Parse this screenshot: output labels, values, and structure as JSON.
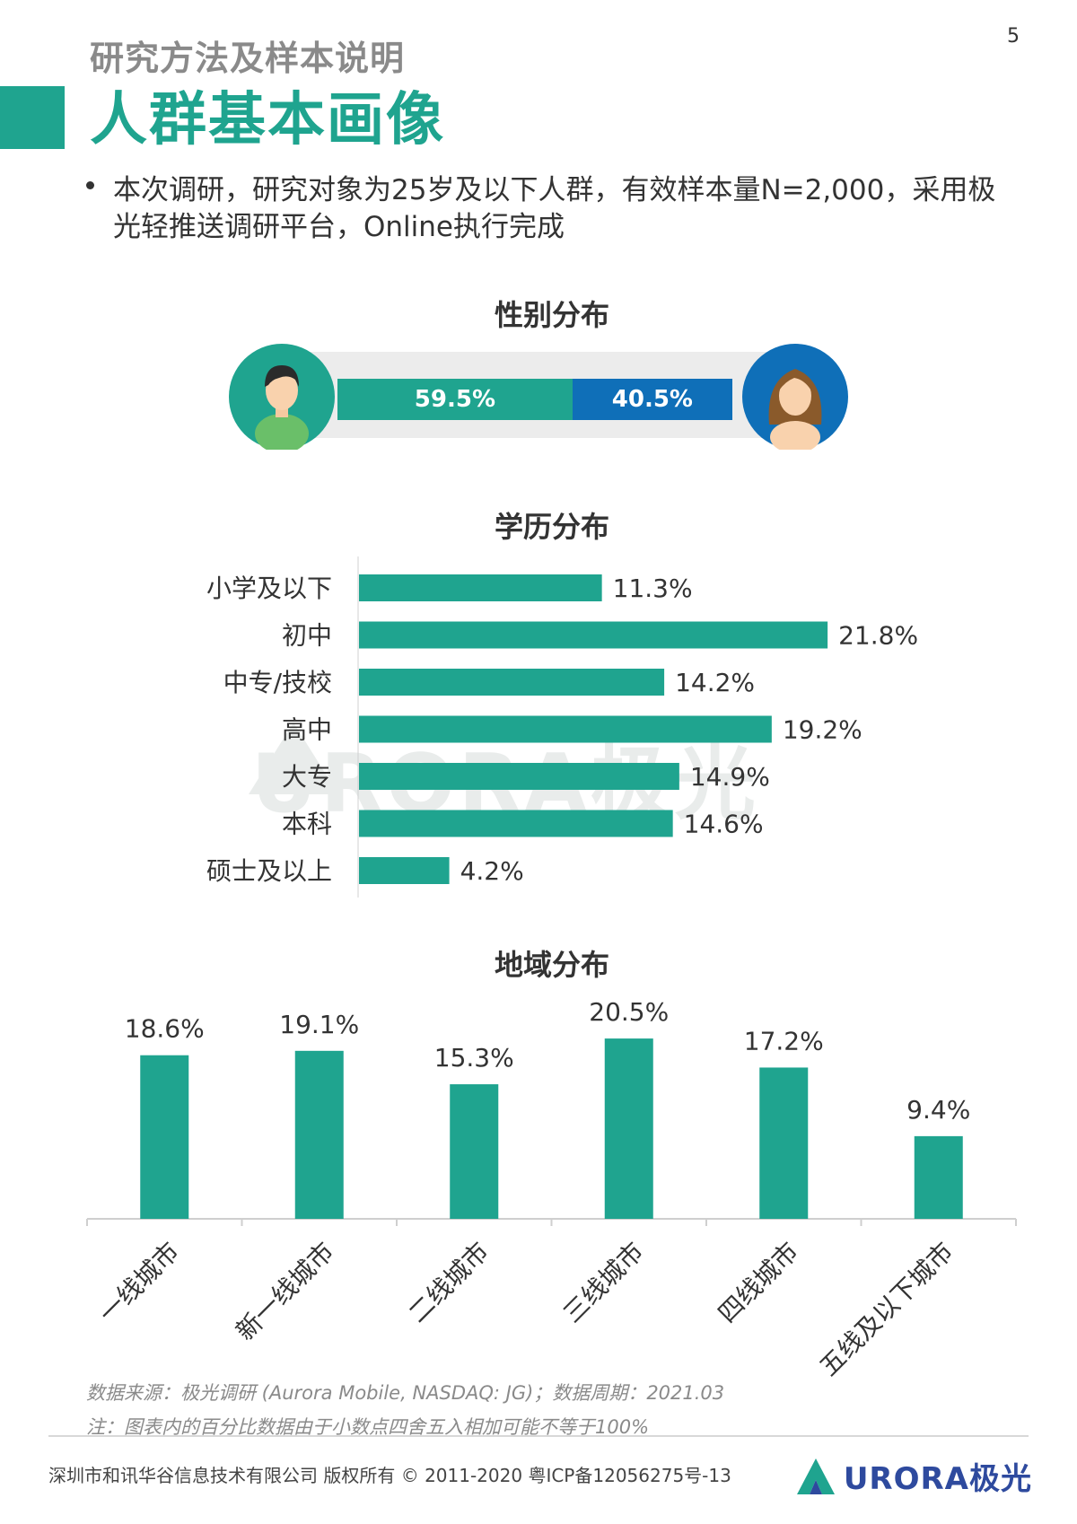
{
  "page": {
    "number": "5",
    "section_label": "研究方法及样本说明",
    "title": "人群基本画像",
    "intro": "本次调研，研究对象为25岁及以下人群，有效样本量N=2,000，采用极光轻推送调研平台，Online执行完成"
  },
  "colors": {
    "accent": "#1fa48f",
    "female": "#0f6fb8",
    "logo": "#2e4a9e"
  },
  "chart_data": [
    {
      "type": "bar",
      "orientation": "stacked-horizontal",
      "title": "性别分布",
      "categories": [
        "男",
        "女"
      ],
      "values": [
        59.5,
        40.5
      ],
      "labels": [
        "59.5%",
        "40.5%"
      ],
      "icons": [
        "male-avatar-icon",
        "female-avatar-icon"
      ]
    },
    {
      "type": "bar",
      "orientation": "horizontal",
      "title": "学历分布",
      "categories": [
        "小学及以下",
        "初中",
        "中专/技校",
        "高中",
        "大专",
        "本科",
        "硕士及以上"
      ],
      "values": [
        11.3,
        21.8,
        14.2,
        19.2,
        14.9,
        14.6,
        4.2
      ],
      "labels": [
        "11.3%",
        "21.8%",
        "14.2%",
        "19.2%",
        "14.9%",
        "14.6%",
        "4.2%"
      ],
      "xlim": [
        0,
        25
      ]
    },
    {
      "type": "bar",
      "orientation": "vertical",
      "title": "地域分布",
      "categories": [
        "一线城市",
        "新一线城市",
        "二线城市",
        "三线城市",
        "四线城市",
        "五线及以下城市"
      ],
      "values": [
        18.6,
        19.1,
        15.3,
        20.5,
        17.2,
        9.4
      ],
      "labels": [
        "18.6%",
        "19.1%",
        "15.3%",
        "20.5%",
        "17.2%",
        "9.4%"
      ],
      "ylim": [
        0,
        25
      ]
    }
  ],
  "watermark": "URORA极光",
  "source": {
    "line1": "数据来源：极光调研 (Aurora Mobile, NASDAQ: JG)；数据周期：2021.03",
    "line2": "注：图表内的百分比数据由于小数点四舍五入相加可能不等于100%"
  },
  "footer": {
    "copyright": "深圳市和讯华谷信息技术有限公司 版权所有 © 2011-2020 粤ICP备12056275号-13",
    "logo": "URORA极光"
  }
}
